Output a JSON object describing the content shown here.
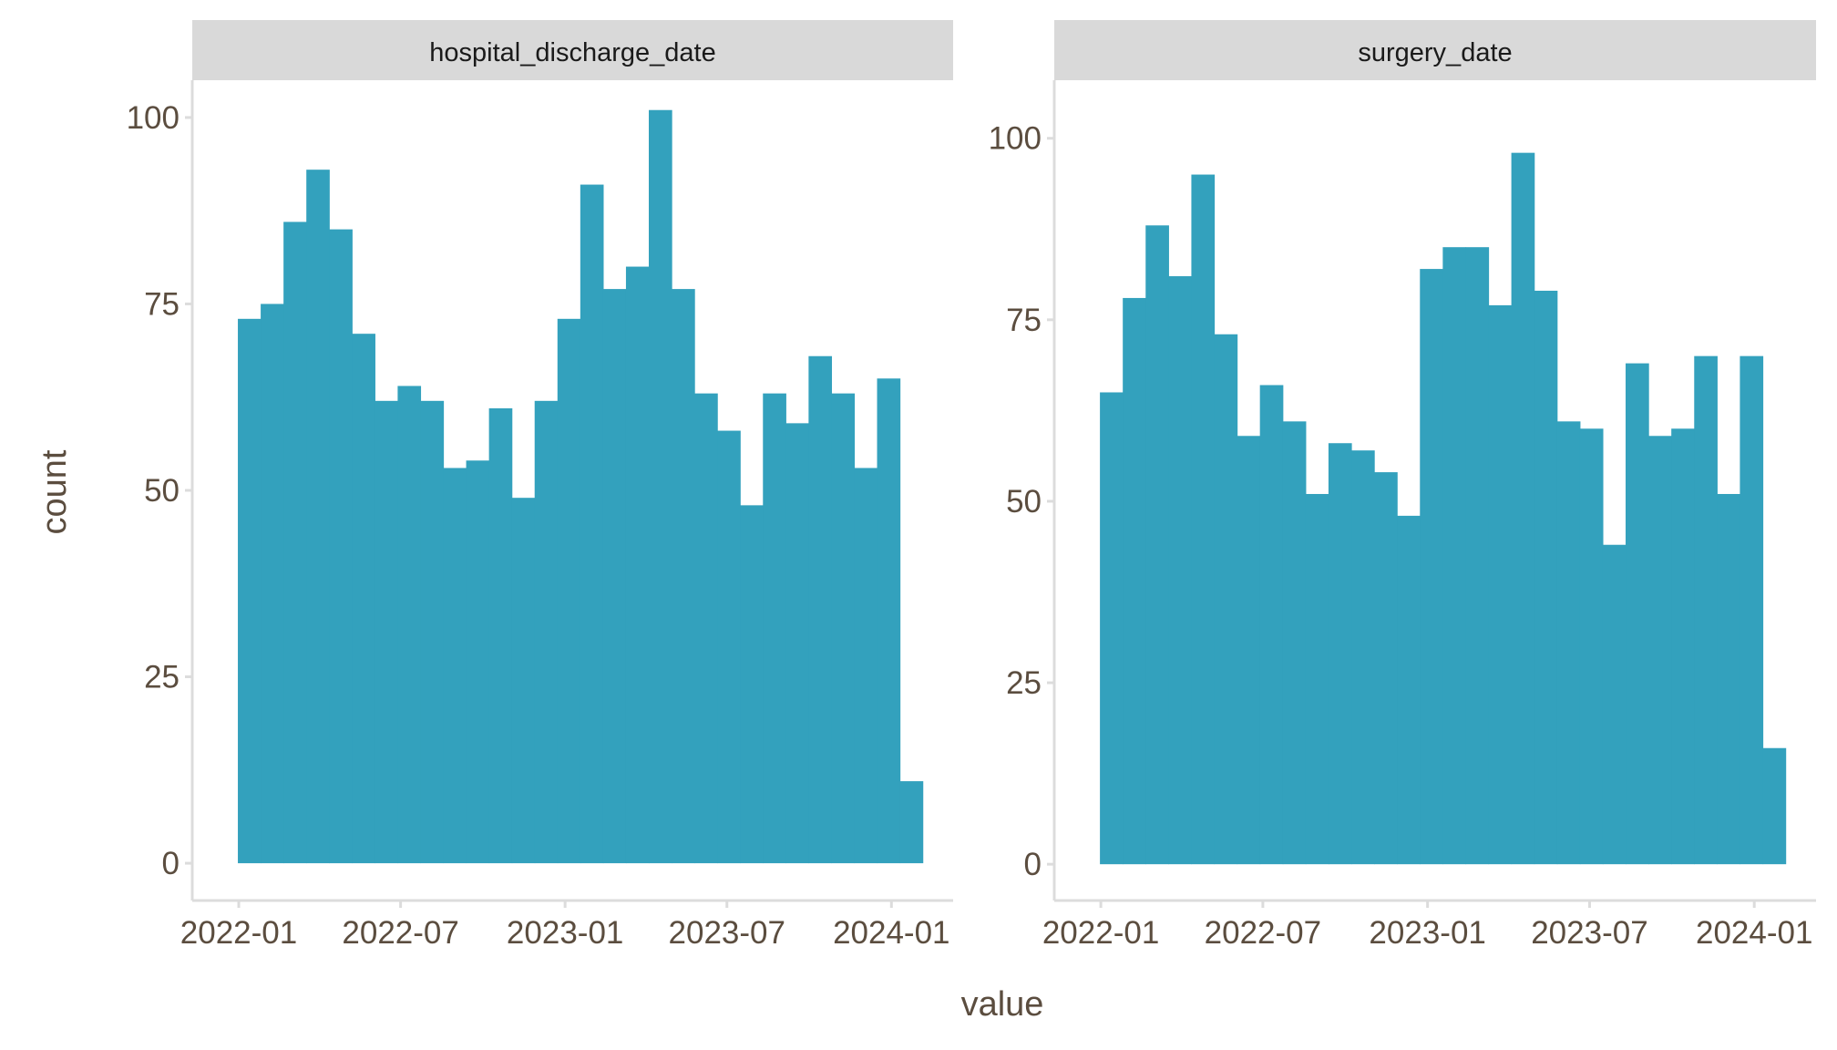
{
  "chart_data": {
    "type": "bar",
    "subtype": "faceted-histogram",
    "xlabel": "value",
    "ylabel": "count",
    "x_ticks": [
      "2022-01",
      "2022-07",
      "2023-01",
      "2023-07",
      "2024-01"
    ],
    "y_ticks": [
      0,
      25,
      50,
      75,
      100
    ],
    "grid": false,
    "colors": {
      "bar": "#33a1bd",
      "strip": "#d9d9d9",
      "axis": "#dcdcdc",
      "text": "#5b4d3f"
    },
    "panels": [
      {
        "title": "hospital_discharge_date",
        "x_range": [
          "2021-11-10",
          "2024-03-10"
        ],
        "ylim": [
          -5,
          105
        ],
        "bin_start": "2021-12-31",
        "bin_end": "2024-02-05",
        "values": [
          73,
          75,
          86,
          93,
          85,
          71,
          62,
          64,
          62,
          53,
          54,
          61,
          49,
          62,
          73,
          91,
          77,
          80,
          101,
          77,
          63,
          58,
          48,
          63,
          59,
          68,
          63,
          53,
          65,
          11
        ]
      },
      {
        "title": "surgery_date",
        "x_range": [
          "2021-11-10",
          "2024-03-10"
        ],
        "ylim": [
          -5,
          108
        ],
        "bin_start": "2021-12-31",
        "bin_end": "2024-02-05",
        "values": [
          65,
          78,
          88,
          81,
          95,
          73,
          59,
          66,
          61,
          51,
          58,
          57,
          54,
          48,
          82,
          85,
          85,
          77,
          98,
          79,
          61,
          60,
          44,
          69,
          59,
          60,
          70,
          51,
          70,
          16
        ]
      }
    ]
  }
}
